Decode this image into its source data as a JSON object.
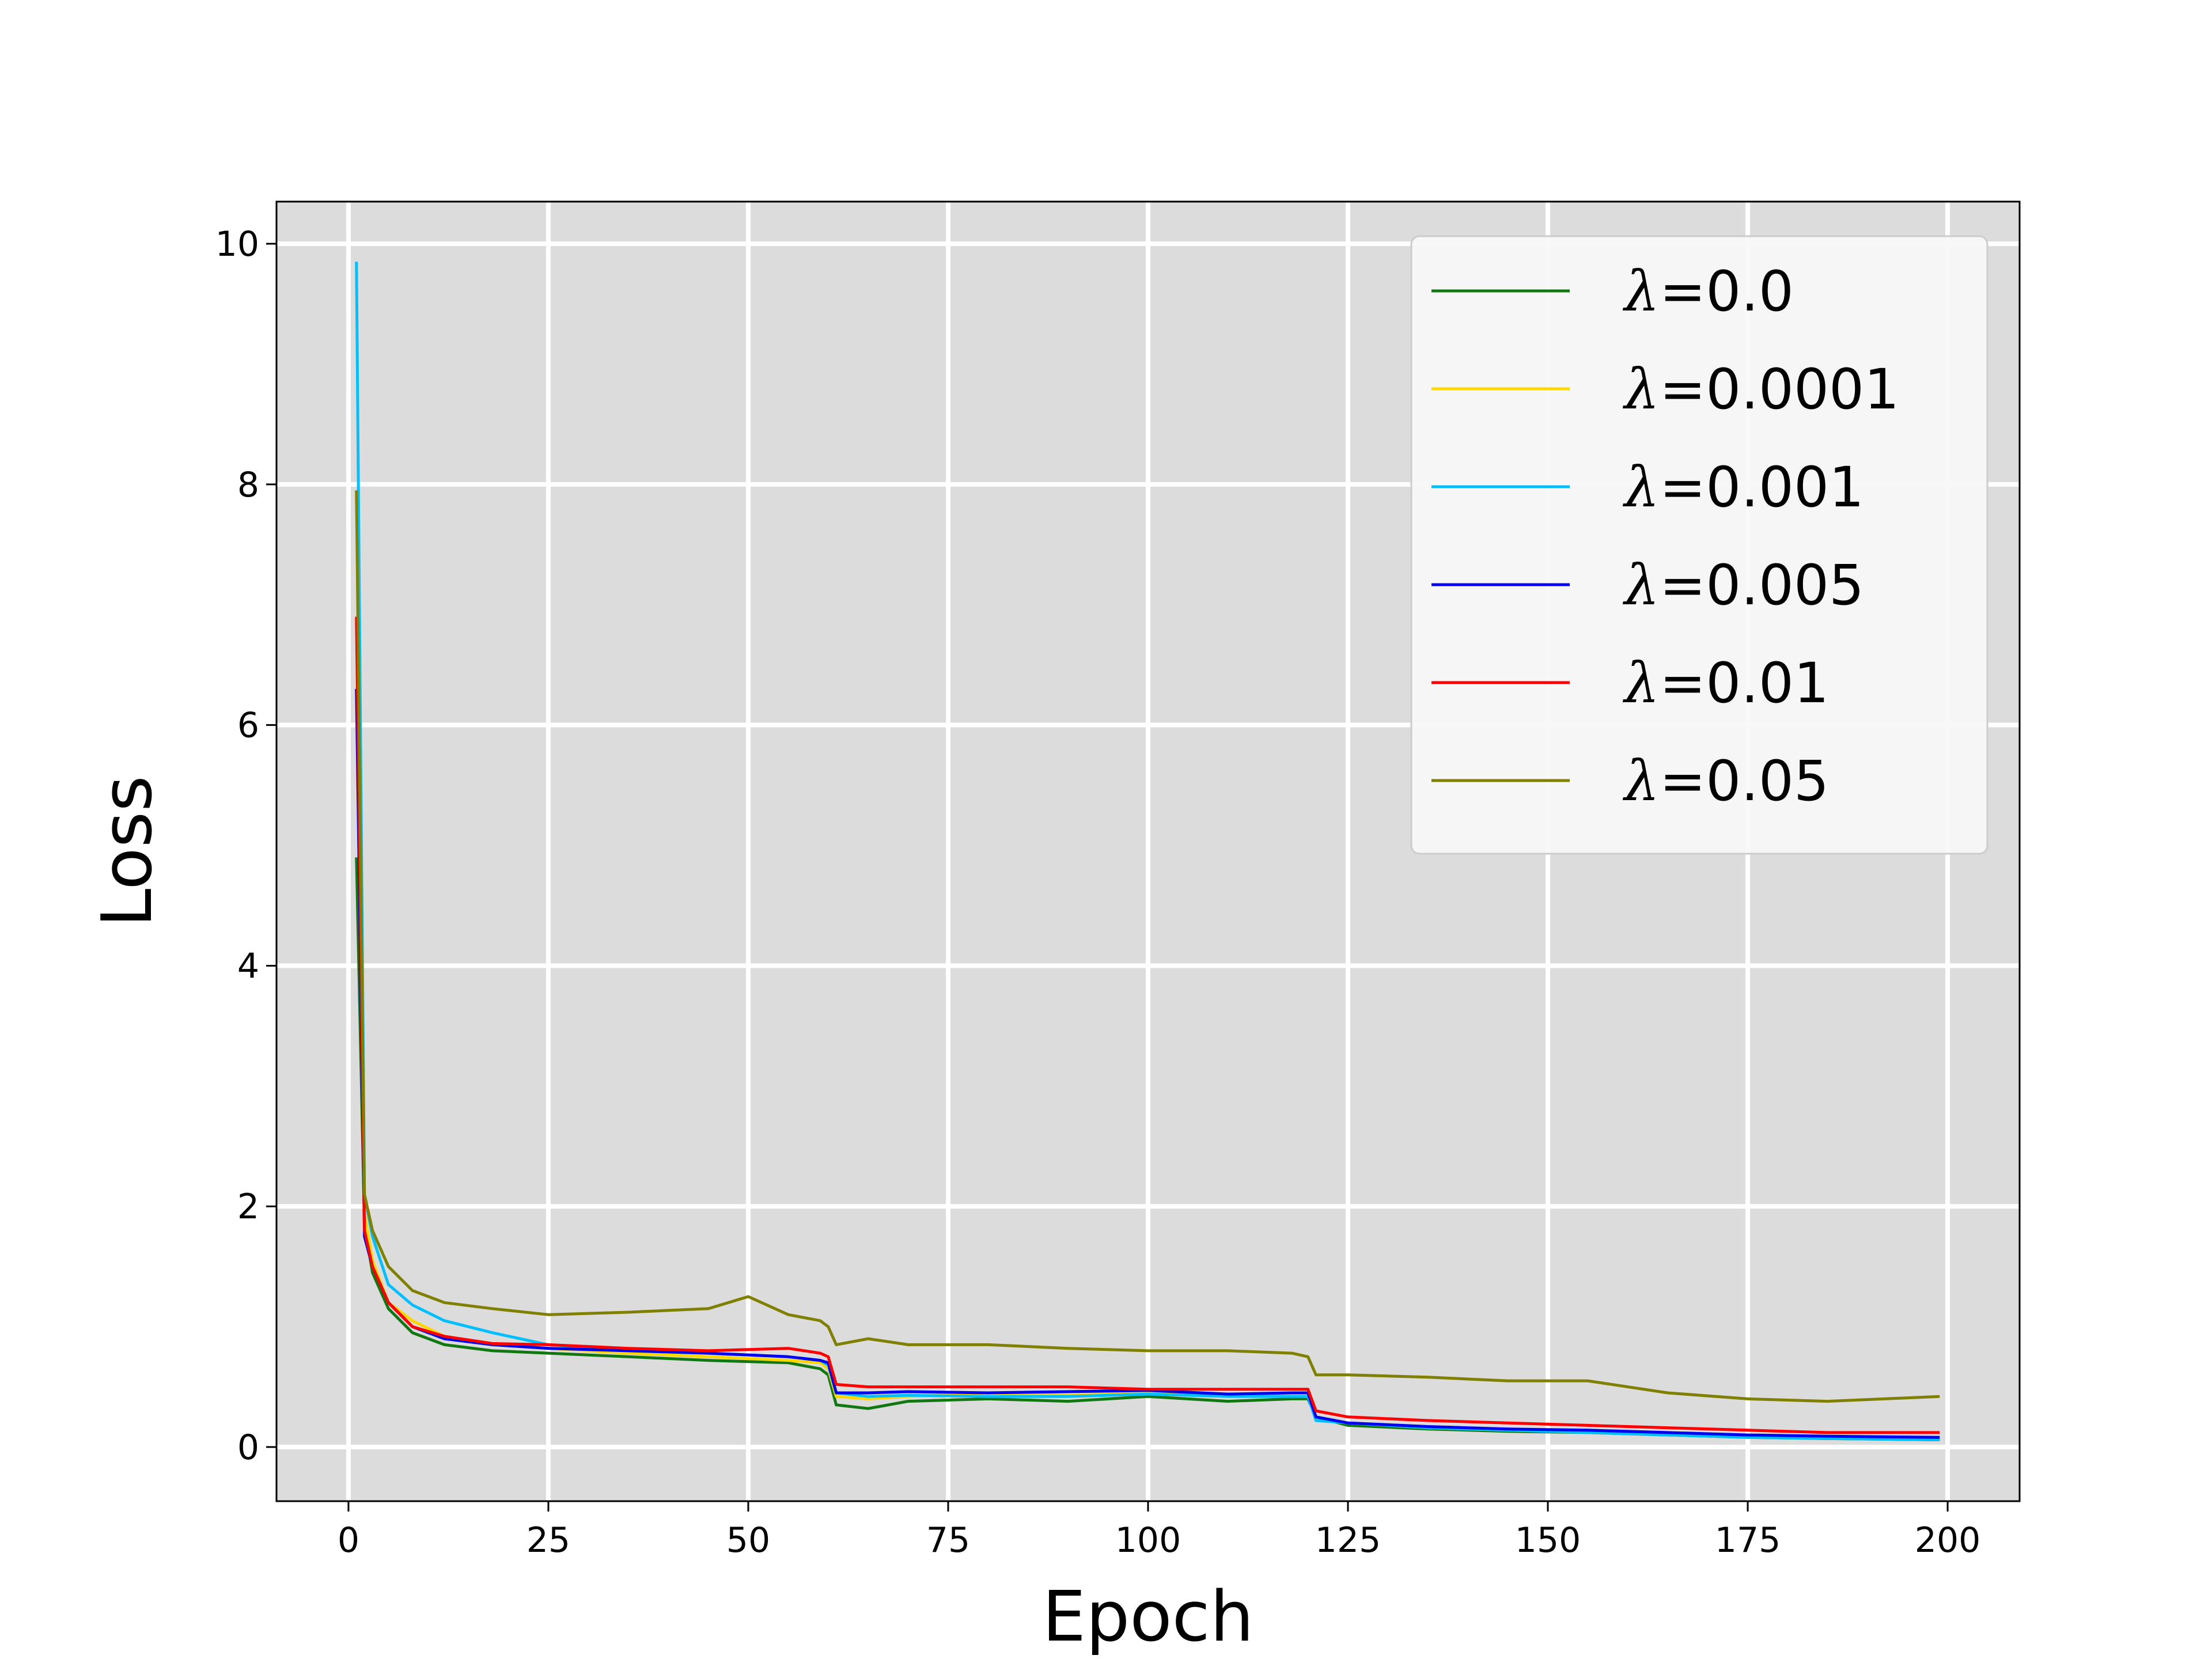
{
  "chart_data": {
    "type": "line",
    "xlabel": "Epoch",
    "ylabel": "Loss",
    "xlim": [
      -9,
      209
    ],
    "ylim": [
      -0.45,
      10.35
    ],
    "xticks": [
      0,
      25,
      50,
      75,
      100,
      125,
      150,
      175,
      200
    ],
    "yticks": [
      0,
      2,
      4,
      6,
      8,
      10
    ],
    "xtick_labels": [
      "0",
      "25",
      "50",
      "75",
      "100",
      "125",
      "150",
      "175",
      "200"
    ],
    "ytick_labels": [
      "0",
      "2",
      "4",
      "6",
      "8",
      "10"
    ],
    "grid": true,
    "background": "#dcdcdc",
    "legend_position": "top-right",
    "series": [
      {
        "name": "λ=0.0",
        "legend_text": "=0.0",
        "color": "#117711",
        "x": [
          1,
          2,
          3,
          5,
          8,
          12,
          18,
          25,
          35,
          45,
          55,
          59,
          60,
          61,
          65,
          70,
          80,
          90,
          100,
          110,
          118,
          120,
          121,
          125,
          135,
          145,
          155,
          165,
          175,
          185,
          199
        ],
        "y": [
          4.9,
          1.85,
          1.45,
          1.15,
          0.95,
          0.85,
          0.8,
          0.78,
          0.75,
          0.72,
          0.7,
          0.65,
          0.6,
          0.35,
          0.32,
          0.38,
          0.4,
          0.38,
          0.42,
          0.38,
          0.4,
          0.4,
          0.25,
          0.18,
          0.15,
          0.13,
          0.12,
          0.1,
          0.08,
          0.07,
          0.06
        ]
      },
      {
        "name": "λ=0.0001",
        "legend_text": "=0.0001",
        "color": "#ffd700",
        "x": [
          1,
          2,
          3,
          5,
          8,
          12,
          18,
          25,
          35,
          45,
          55,
          59,
          60,
          61,
          65,
          70,
          80,
          90,
          100,
          110,
          118,
          120,
          121,
          125,
          135,
          145,
          155,
          165,
          175,
          185,
          199
        ],
        "y": [
          6.3,
          1.95,
          1.55,
          1.2,
          1.05,
          0.92,
          0.85,
          0.82,
          0.78,
          0.75,
          0.72,
          0.7,
          0.65,
          0.42,
          0.4,
          0.42,
          0.45,
          0.43,
          0.45,
          0.42,
          0.45,
          0.45,
          0.25,
          0.2,
          0.16,
          0.14,
          0.13,
          0.11,
          0.09,
          0.08,
          0.07
        ]
      },
      {
        "name": "λ=0.001",
        "legend_text": "=0.001",
        "color": "#00bfff",
        "x": [
          1,
          2,
          3,
          5,
          8,
          12,
          18,
          25,
          35,
          45,
          55,
          59,
          60,
          61,
          65,
          70,
          80,
          90,
          100,
          110,
          118,
          120,
          121,
          125,
          135,
          145,
          155,
          165,
          175,
          185,
          199
        ],
        "y": [
          9.85,
          2.1,
          1.75,
          1.35,
          1.18,
          1.05,
          0.95,
          0.85,
          0.8,
          0.78,
          0.75,
          0.72,
          0.68,
          0.45,
          0.42,
          0.43,
          0.42,
          0.42,
          0.44,
          0.42,
          0.42,
          0.42,
          0.22,
          0.2,
          0.16,
          0.14,
          0.12,
          0.1,
          0.08,
          0.07,
          0.06
        ]
      },
      {
        "name": "λ=0.005",
        "legend_text": "=0.005",
        "color": "#0000ee",
        "x": [
          1,
          2,
          3,
          5,
          8,
          12,
          18,
          25,
          35,
          45,
          55,
          59,
          60,
          61,
          65,
          70,
          80,
          90,
          100,
          110,
          118,
          120,
          121,
          125,
          135,
          145,
          155,
          165,
          175,
          185,
          199
        ],
        "y": [
          6.3,
          1.75,
          1.5,
          1.2,
          1.0,
          0.9,
          0.85,
          0.82,
          0.8,
          0.78,
          0.75,
          0.72,
          0.7,
          0.45,
          0.45,
          0.46,
          0.45,
          0.46,
          0.47,
          0.44,
          0.45,
          0.45,
          0.25,
          0.2,
          0.17,
          0.15,
          0.14,
          0.12,
          0.1,
          0.09,
          0.08
        ]
      },
      {
        "name": "λ=0.01",
        "legend_text": "=0.01",
        "color": "#ff0000",
        "x": [
          1,
          2,
          3,
          5,
          8,
          12,
          18,
          25,
          35,
          45,
          55,
          59,
          60,
          61,
          65,
          70,
          80,
          90,
          100,
          110,
          118,
          120,
          121,
          125,
          135,
          145,
          155,
          165,
          175,
          185,
          199
        ],
        "y": [
          6.9,
          1.8,
          1.5,
          1.2,
          1.0,
          0.92,
          0.86,
          0.85,
          0.82,
          0.8,
          0.82,
          0.78,
          0.75,
          0.52,
          0.5,
          0.5,
          0.5,
          0.5,
          0.48,
          0.48,
          0.48,
          0.48,
          0.3,
          0.25,
          0.22,
          0.2,
          0.18,
          0.16,
          0.14,
          0.12,
          0.12
        ]
      },
      {
        "name": "λ=0.05",
        "legend_text": "=0.05",
        "color": "#808000",
        "x": [
          1,
          2,
          3,
          5,
          8,
          12,
          18,
          25,
          35,
          45,
          50,
          55,
          59,
          60,
          61,
          65,
          70,
          80,
          90,
          100,
          110,
          118,
          120,
          121,
          125,
          135,
          145,
          155,
          165,
          175,
          185,
          199
        ],
        "y": [
          7.95,
          2.1,
          1.8,
          1.5,
          1.3,
          1.2,
          1.15,
          1.1,
          1.12,
          1.15,
          1.25,
          1.1,
          1.05,
          1.0,
          0.85,
          0.9,
          0.85,
          0.85,
          0.82,
          0.8,
          0.8,
          0.78,
          0.75,
          0.6,
          0.6,
          0.58,
          0.55,
          0.55,
          0.45,
          0.4,
          0.38,
          0.42
        ]
      }
    ]
  }
}
